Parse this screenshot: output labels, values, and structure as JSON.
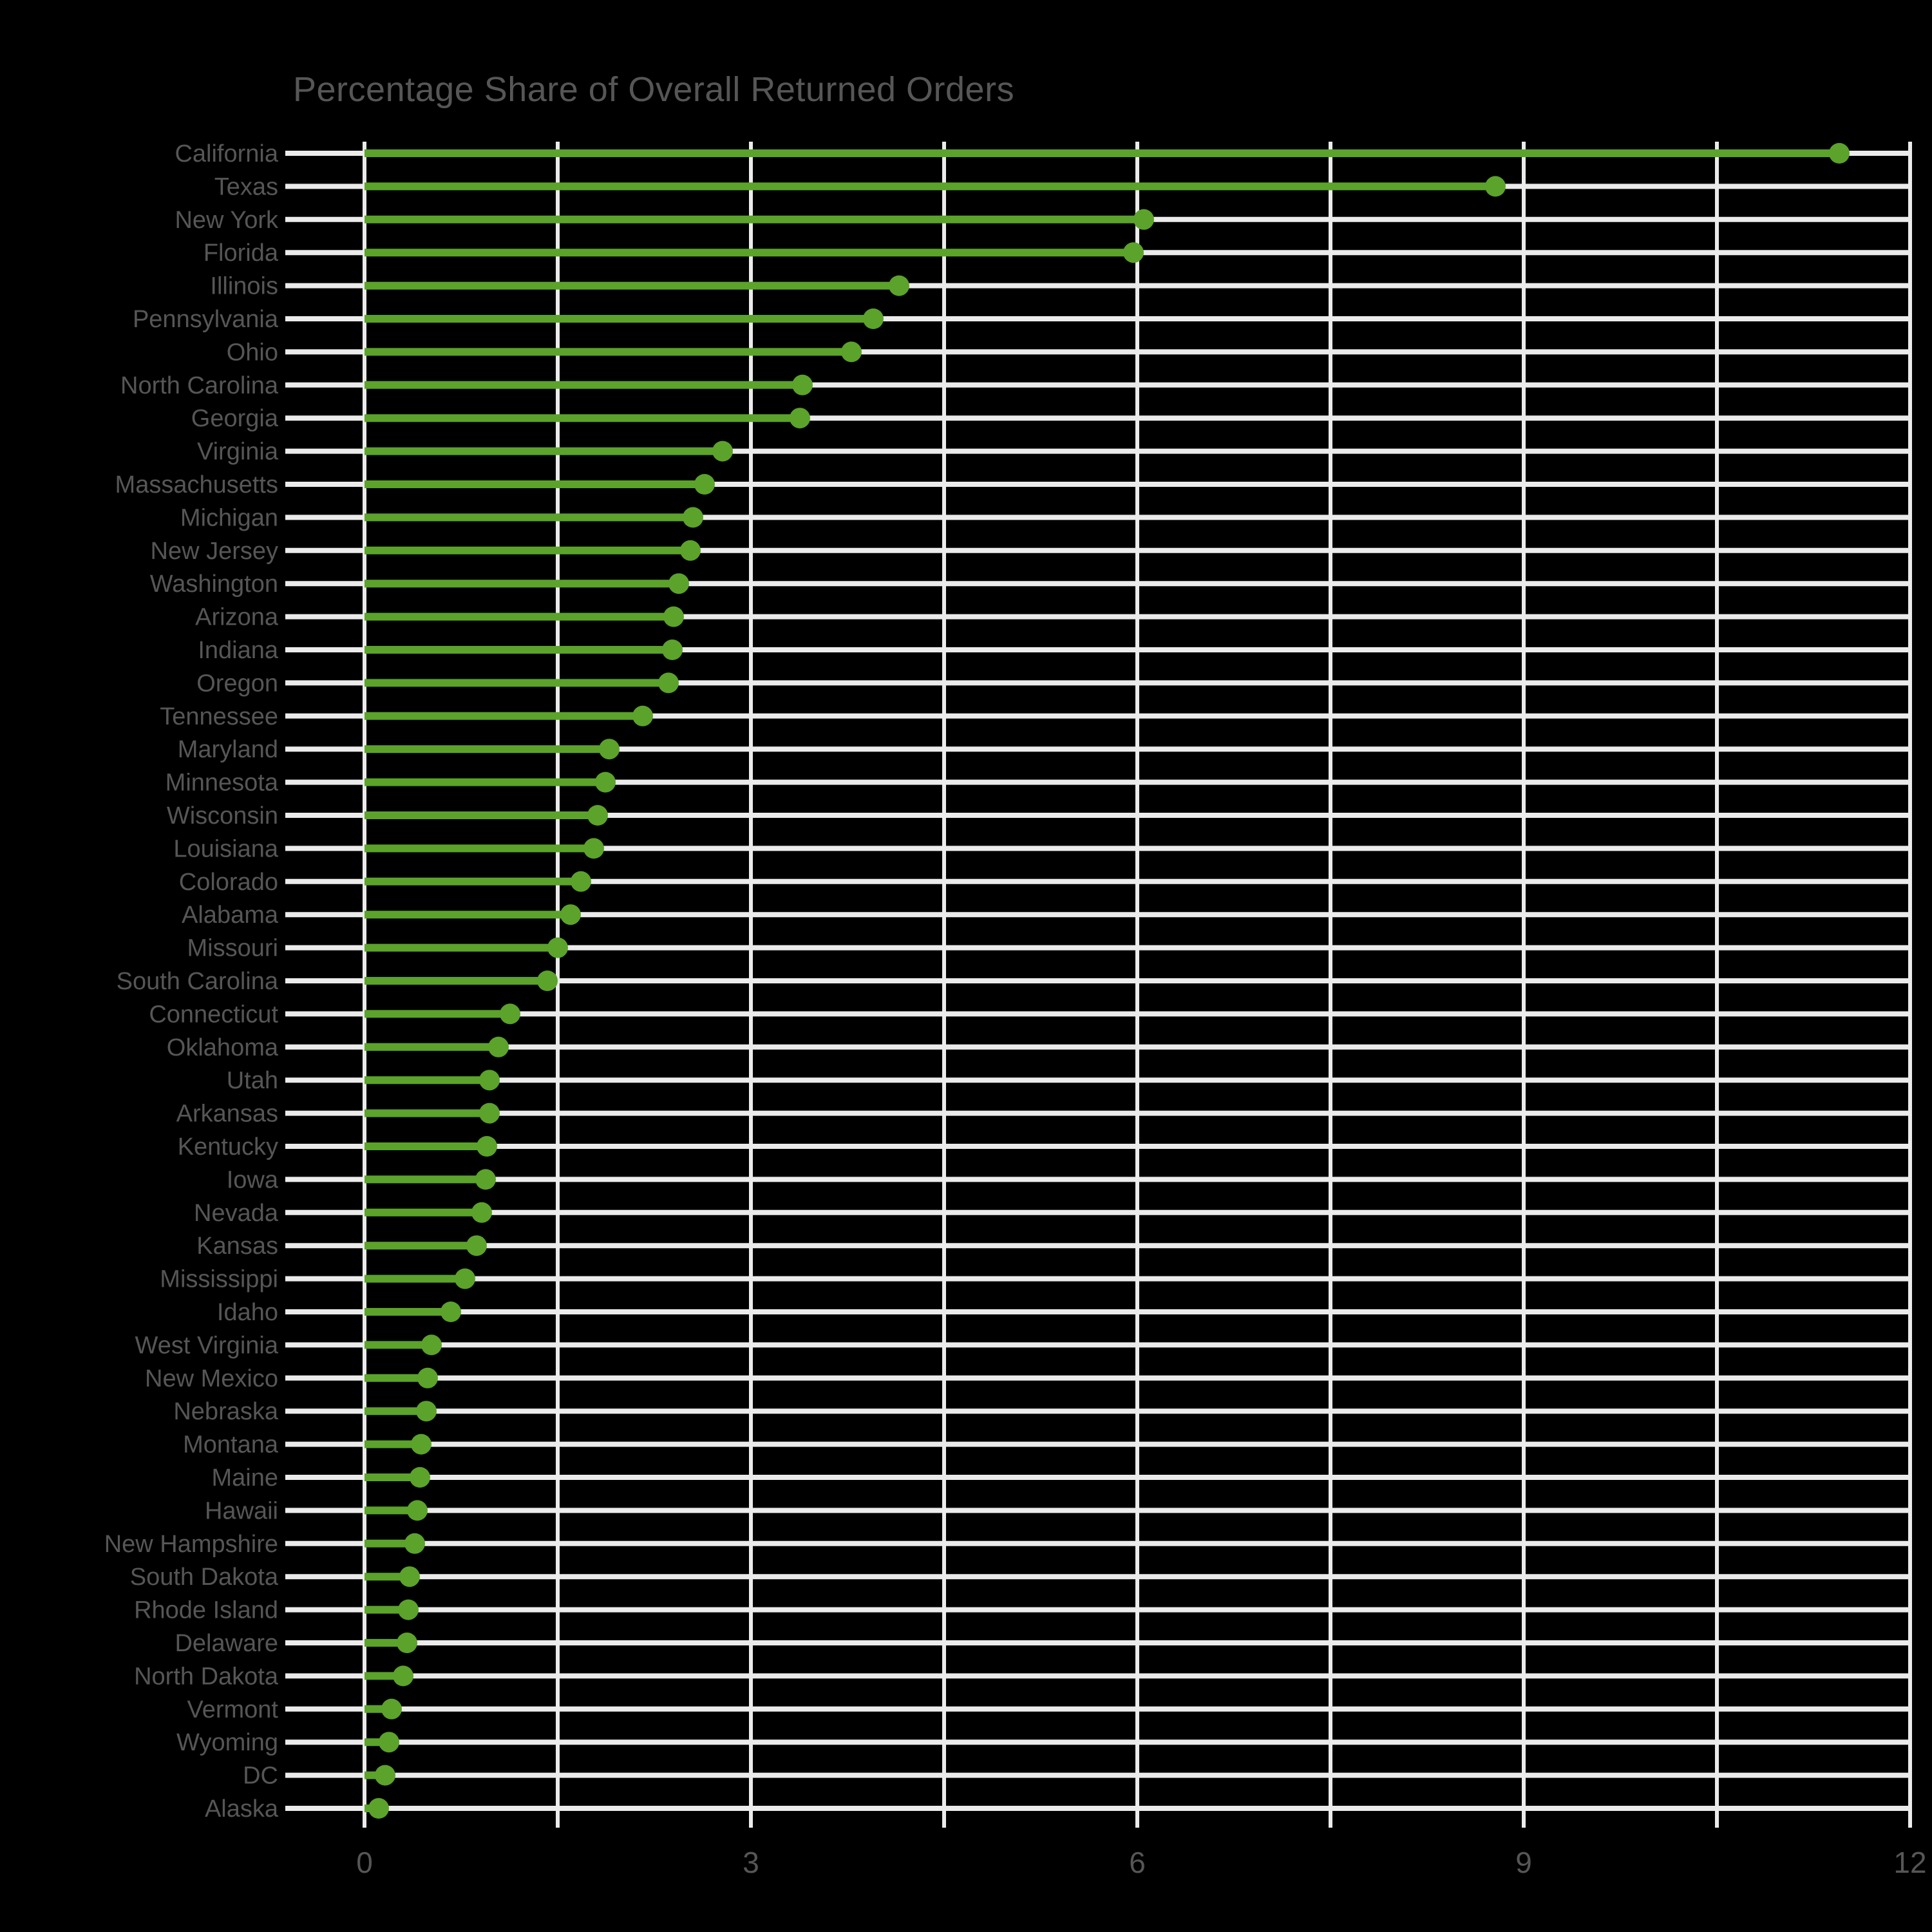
{
  "chart_data": {
    "type": "lollipop",
    "title": "Percentage Share of Overall Returned Orders",
    "xlabel": "",
    "ylabel": "",
    "xlim": [
      0,
      12
    ],
    "x_ticks": [
      0,
      3,
      6,
      9,
      12
    ],
    "gridline_step": 1.5,
    "grid_on": true,
    "legend": "none",
    "categories": [
      "California",
      "Texas",
      "New York",
      "Florida",
      "Illinois",
      "Pennsylvania",
      "Ohio",
      "North Carolina",
      "Georgia",
      "Virginia",
      "Massachusetts",
      "Michigan",
      "New Jersey",
      "Washington",
      "Arizona",
      "Indiana",
      "Oregon",
      "Tennessee",
      "Maryland",
      "Minnesota",
      "Wisconsin",
      "Louisiana",
      "Colorado",
      "Alabama",
      "Missouri",
      "South Carolina",
      "Connecticut",
      "Oklahoma",
      "Utah",
      "Arkansas",
      "Kentucky",
      "Iowa",
      "Nevada",
      "Kansas",
      "Mississippi",
      "Idaho",
      "West Virginia",
      "New Mexico",
      "Nebraska",
      "Montana",
      "Maine",
      "Hawaii",
      "New Hampshire",
      "South Dakota",
      "Rhode Island",
      "Delaware",
      "North Dakota",
      "Vermont",
      "Wyoming",
      "DC",
      "Alaska"
    ],
    "values": [
      11.45,
      8.78,
      6.05,
      5.97,
      4.15,
      3.95,
      3.78,
      3.4,
      3.38,
      2.78,
      2.64,
      2.55,
      2.53,
      2.44,
      2.4,
      2.39,
      2.36,
      2.16,
      1.9,
      1.87,
      1.81,
      1.78,
      1.68,
      1.6,
      1.5,
      1.42,
      1.13,
      1.04,
      0.97,
      0.97,
      0.95,
      0.94,
      0.91,
      0.87,
      0.78,
      0.67,
      0.52,
      0.49,
      0.48,
      0.44,
      0.43,
      0.41,
      0.39,
      0.35,
      0.34,
      0.33,
      0.3,
      0.21,
      0.19,
      0.16,
      0.11
    ],
    "colors": {
      "accent_green": "#5ba32a",
      "grid_line": "#ebebeb",
      "text_gray": "#565656",
      "background": "#000000"
    }
  }
}
